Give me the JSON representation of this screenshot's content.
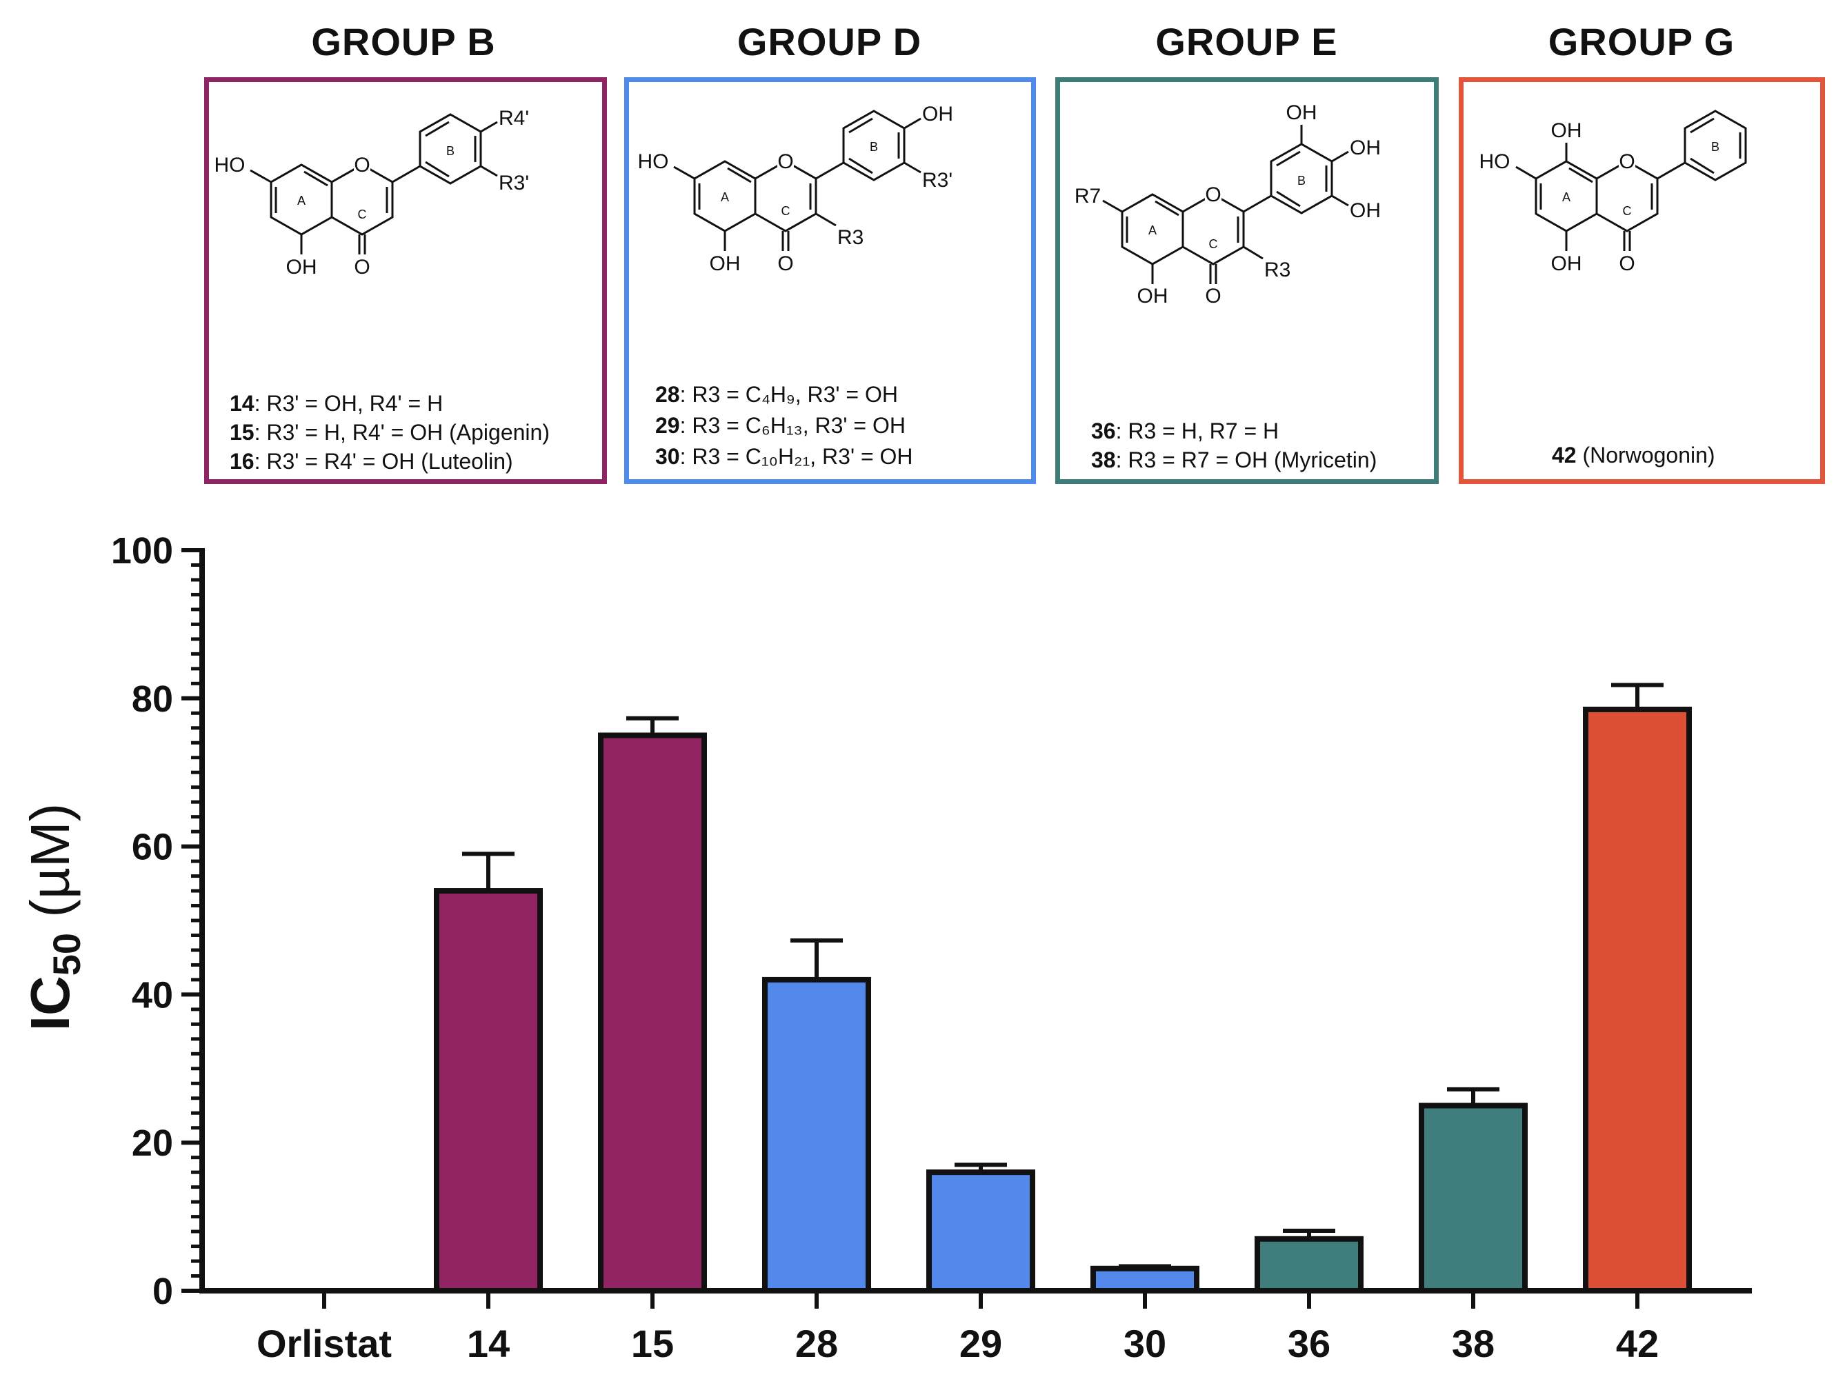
{
  "groups": [
    {
      "title": "GROUP B",
      "color": "#8E2463",
      "lines": [
        {
          "num": "14",
          "text": ": R3' = OH, R4' = H"
        },
        {
          "num": "15",
          "text": ": R3' = H, R4' = OH (Apigenin)"
        },
        {
          "num": "16",
          "text": ": R3' = R4' = OH (Luteolin)"
        }
      ]
    },
    {
      "title": "GROUP D",
      "color": "#4F8BEA",
      "lines": [
        {
          "num": "28",
          "text": ": R3 = C₄H₉, R3' = OH"
        },
        {
          "num": "29",
          "text": ": R3 = C₆H₁₃, R3' = OH"
        },
        {
          "num": "30",
          "text": ": R3 = C₁₀H₂₁, R3' = OH"
        }
      ]
    },
    {
      "title": "GROUP E",
      "color": "#3E7D77",
      "lines": [
        {
          "num": "36",
          "text": ": R3 = H, R7 = H"
        },
        {
          "num": "38",
          "text": ": R3 = R7 = OH (Myricetin)"
        }
      ]
    },
    {
      "title": "GROUP G",
      "color": "#E2553A",
      "lines": [
        {
          "num": "42",
          "text": " (Norwogonin)"
        }
      ]
    }
  ],
  "structure_labels": {
    "ho": "HO",
    "oh": "OH",
    "o": "O",
    "ring_a": "A",
    "ring_b": "B",
    "ring_c": "C",
    "r3": "R3",
    "r3p": "R3'",
    "r4p": "R4'",
    "r7": "R7"
  },
  "chart_data": {
    "type": "bar",
    "ylabel_main": "IC",
    "ylabel_sub": "50",
    "ylabel_unit": " (µM)",
    "ylim": [
      0,
      100
    ],
    "yticks": [
      0,
      20,
      40,
      60,
      80,
      100
    ],
    "categories": [
      "Orlistat",
      "14",
      "15",
      "28",
      "29",
      "30",
      "36",
      "38",
      "42"
    ],
    "values": [
      0,
      54,
      75,
      42,
      16,
      3,
      7,
      25,
      78.5
    ],
    "errors": [
      0,
      5,
      2.3,
      5.3,
      1,
      0.3,
      1.1,
      2.2,
      3.3
    ],
    "colors": [
      "#ffffff",
      "#932463",
      "#932463",
      "#5389EA",
      "#5389EA",
      "#5389EA",
      "#3F7E7C",
      "#3F7E7C",
      "#DD5035"
    ]
  }
}
